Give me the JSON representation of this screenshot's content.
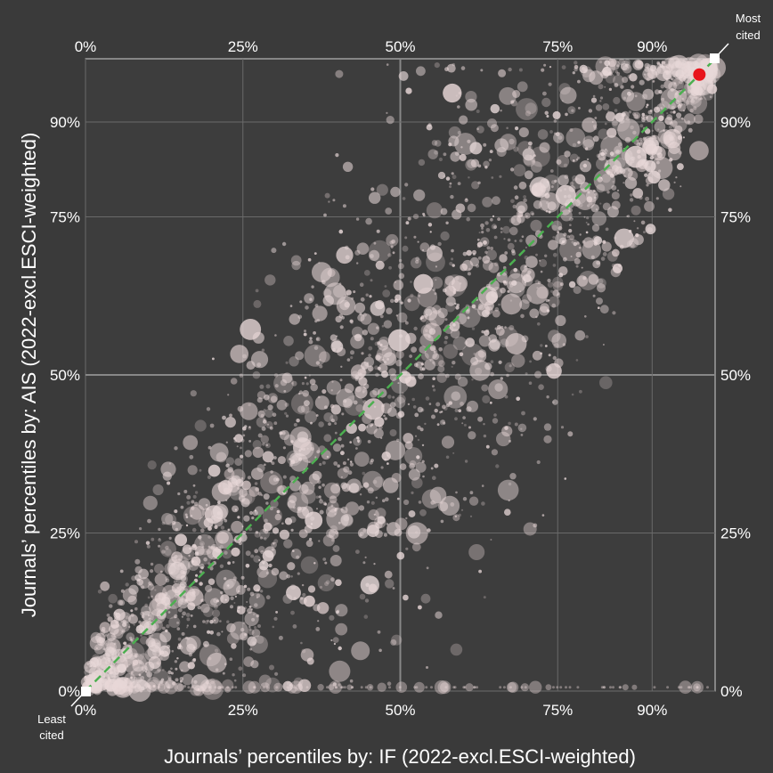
{
  "chart_data": {
    "type": "scatter",
    "xlabel": "Journals’ percentiles by: IF (2022-excl.ESCI-weighted)",
    "ylabel": "Journals’ percentiles by: AIS (2022-excl.ESCI-weighted)",
    "x_ticks": [
      "0%",
      "25%",
      "50%",
      "75%",
      "90%"
    ],
    "y_ticks": [
      "0%",
      "25%",
      "50%",
      "75%",
      "90%"
    ],
    "tick_values": [
      0,
      25,
      50,
      75,
      90
    ],
    "xlim": [
      0,
      100
    ],
    "ylim": [
      0,
      100
    ],
    "grid": true,
    "diagonal": {
      "from": [
        0,
        0
      ],
      "to": [
        100,
        100
      ],
      "color": "#4caf50",
      "style": "dashed"
    },
    "corner_labels": {
      "top_right": [
        "Most",
        "cited"
      ],
      "bottom_left": [
        "Least",
        "cited"
      ]
    },
    "highlight_point": {
      "x": 97.5,
      "y": 97.5,
      "color": "#e8141b"
    },
    "point_color": "#e8d8d8",
    "background": "#3a3a3a",
    "approx_point_count": 3500
  }
}
